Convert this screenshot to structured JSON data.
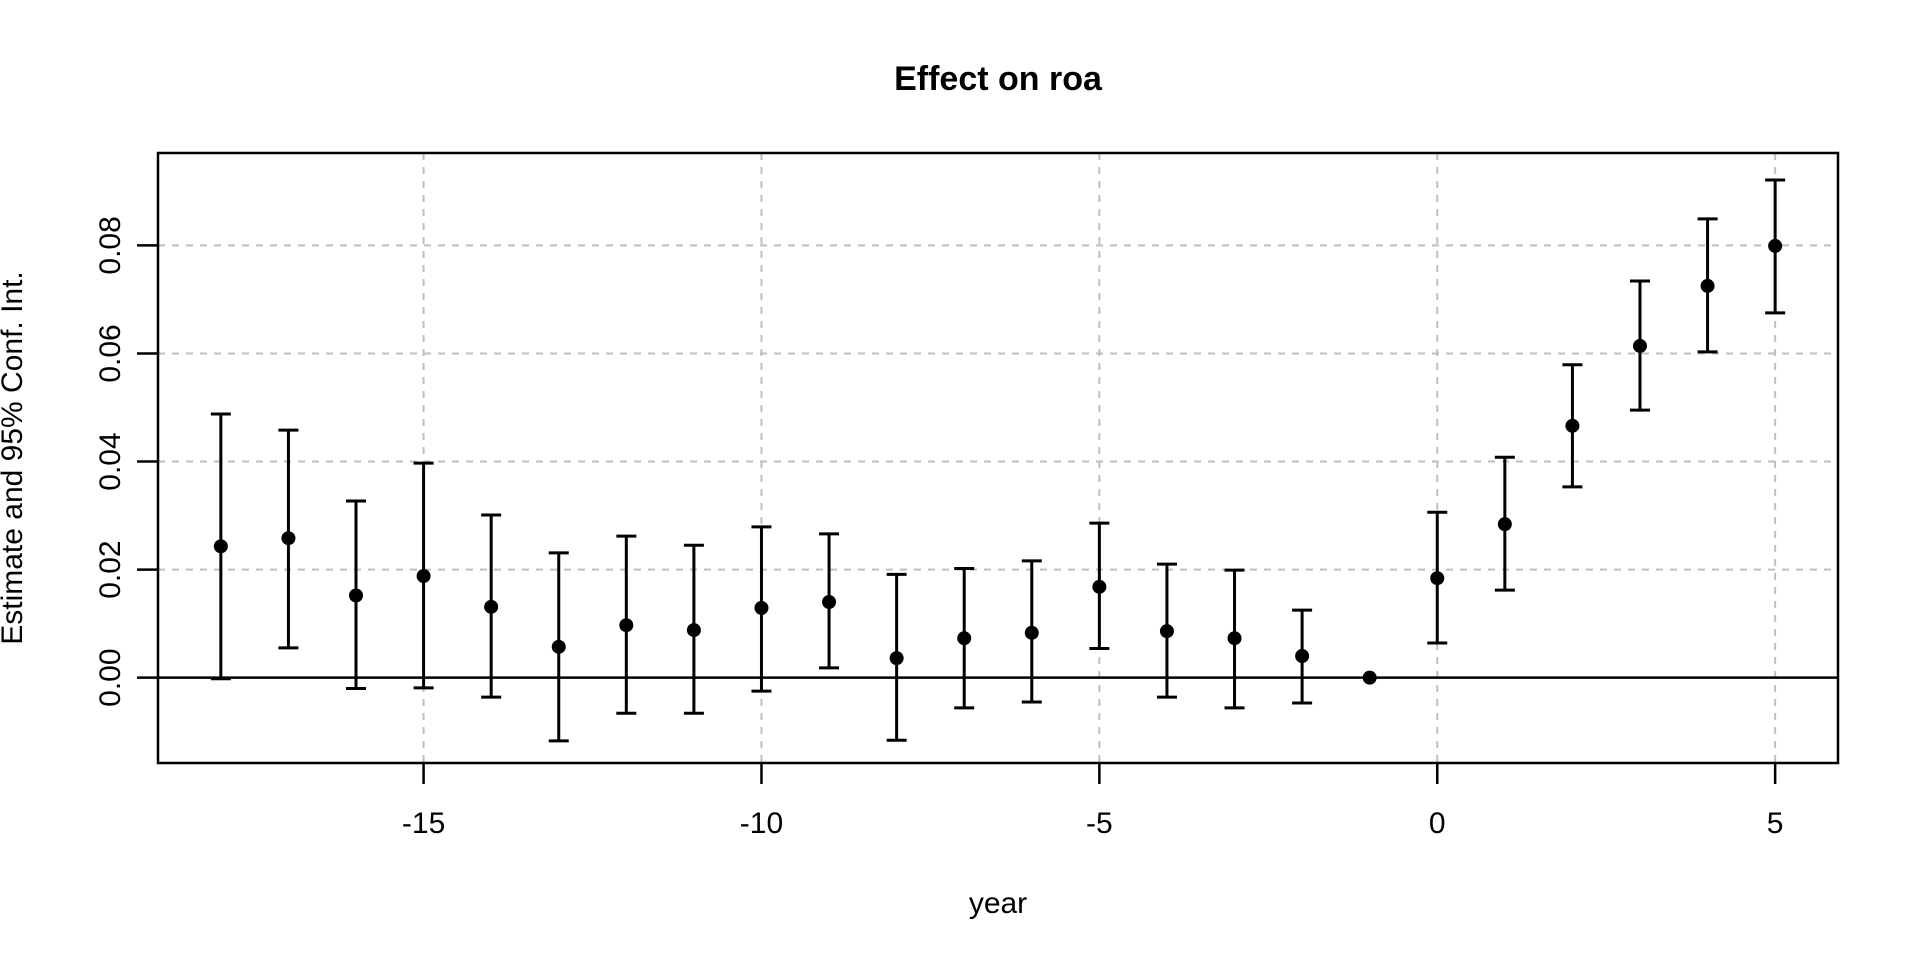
{
  "chart_data": {
    "type": "scatter",
    "subtype": "event-study-errorbar",
    "title": "Effect on roa",
    "xlabel": "year",
    "ylabel": "Estimate and 95% Conf. Int.",
    "x": [
      -18,
      -17,
      -16,
      -15,
      -14,
      -13,
      -12,
      -11,
      -10,
      -9,
      -8,
      -7,
      -6,
      -5,
      -4,
      -3,
      -2,
      -1,
      0,
      1,
      2,
      3,
      4,
      5
    ],
    "series": [
      {
        "name": "Estimate",
        "values": [
          0.0243,
          0.0258,
          0.0152,
          0.0188,
          0.0131,
          0.0057,
          0.0097,
          0.0088,
          0.0129,
          0.014,
          0.0036,
          0.0073,
          0.0083,
          0.0168,
          0.0086,
          0.0073,
          0.004,
          0.0,
          0.0184,
          0.0284,
          0.0466,
          0.0614,
          0.0725,
          0.0799
        ]
      }
    ],
    "ci_lower": [
      -0.0002,
      0.0055,
      -0.002,
      -0.0019,
      -0.0036,
      -0.0117,
      -0.0066,
      -0.0066,
      -0.0025,
      0.0018,
      -0.0116,
      -0.0056,
      -0.0045,
      0.0054,
      -0.0036,
      -0.0056,
      -0.0047,
      0.0,
      0.0064,
      0.0162,
      0.0353,
      0.0495,
      0.0603,
      0.0675
    ],
    "ci_upper": [
      0.0488,
      0.0458,
      0.0327,
      0.0397,
      0.0301,
      0.0231,
      0.0262,
      0.0245,
      0.0279,
      0.0266,
      0.0191,
      0.0202,
      0.0216,
      0.0286,
      0.021,
      0.0199,
      0.0125,
      0.0,
      0.0306,
      0.0408,
      0.0579,
      0.0734,
      0.0849,
      0.0921
    ],
    "reference_x": -1,
    "x_ticks": [
      -15,
      -10,
      -5,
      0,
      5
    ],
    "x_tick_labels": [
      "-15",
      "-10",
      "-5",
      "0",
      "5"
    ],
    "y_ticks": [
      0.0,
      0.02,
      0.04,
      0.06,
      0.08
    ],
    "y_tick_labels": [
      "0.00",
      "0.02",
      "0.04",
      "0.06",
      "0.08"
    ],
    "xlim": [
      -18.93,
      5.93
    ],
    "ylim": [
      -0.0158,
      0.0971
    ],
    "grid": true,
    "grid_style": "dashed",
    "zero_line": true,
    "legend": "none",
    "colors": {
      "point": "#000000",
      "errorbar": "#000000",
      "gridline": "#bfbfbf",
      "axis": "#000000",
      "zero_line": "#000000",
      "background": "#ffffff",
      "text": "#000000"
    }
  }
}
